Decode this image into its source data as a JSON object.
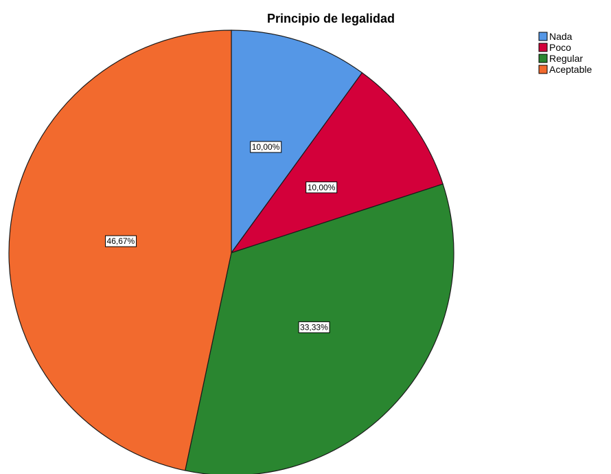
{
  "chart_data": {
    "type": "pie",
    "title": "Principio de legalidad",
    "slices": [
      {
        "name": "Nada",
        "value": 10.0,
        "label": "10,00%",
        "color": "#5597e6"
      },
      {
        "name": "Poco",
        "value": 10.0,
        "label": "10,00%",
        "color": "#d3003a"
      },
      {
        "name": "Regular",
        "value": 33.33,
        "label": "33,33%",
        "color": "#2a8630"
      },
      {
        "name": "Aceptable",
        "value": 46.67,
        "label": "46,67%",
        "color": "#f26a2e"
      }
    ],
    "legend_position": "top-right",
    "start": "12 o'clock",
    "direction": "clockwise"
  }
}
